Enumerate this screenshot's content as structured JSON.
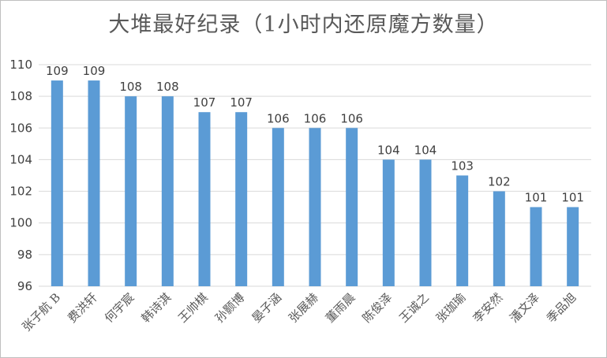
{
  "chart_data": {
    "type": "bar",
    "title": "大堆最好纪录（1小时内还原魔方数量）",
    "xlabel": "",
    "ylabel": "",
    "ylim": [
      96,
      110
    ],
    "yticks": [
      96,
      98,
      100,
      102,
      104,
      106,
      108,
      110
    ],
    "grid": true,
    "legend": "none",
    "bar_color": "#5b9bd5",
    "gridline_color": "#d9d9d9",
    "categories": [
      "张子航 B",
      "费洪轩",
      "何宇宸",
      "韩诗淇",
      "王帅棋",
      "孙颢博",
      "晏子涵",
      "张展赫",
      "董雨晨",
      "陈俊泽",
      "王诚之",
      "张珈瑜",
      "李安然",
      "潘文泽",
      "季品旭"
    ],
    "values": [
      109,
      109,
      108,
      108,
      107,
      107,
      106,
      106,
      106,
      104,
      104,
      103,
      102,
      101,
      101
    ]
  }
}
